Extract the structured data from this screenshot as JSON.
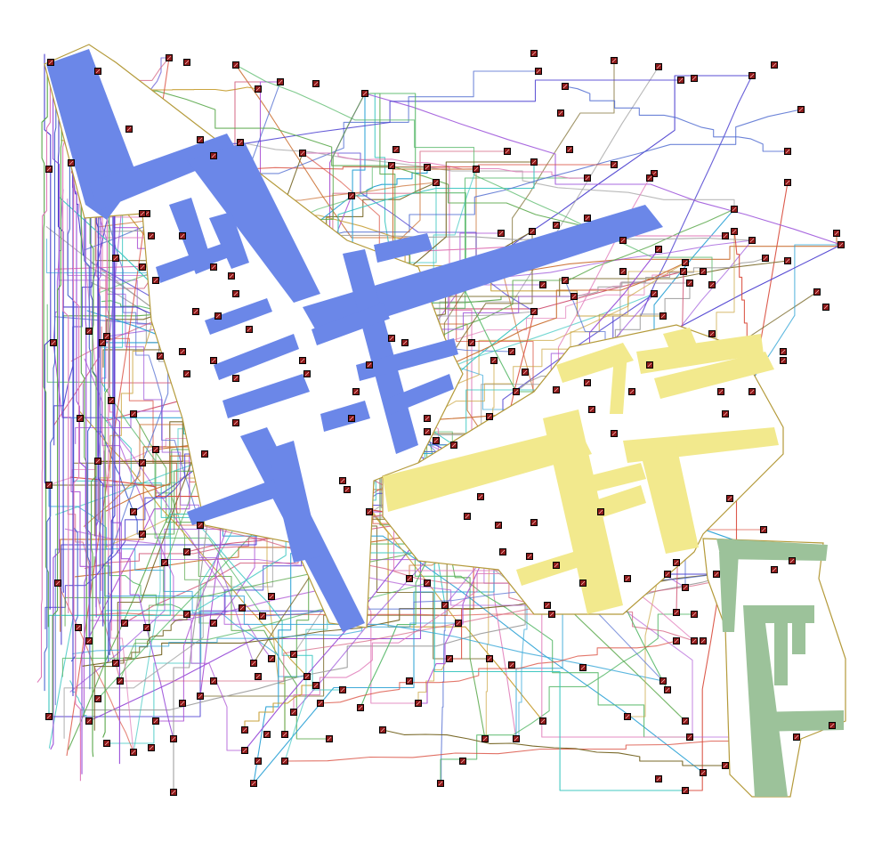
{
  "diagram": {
    "kind": "pcb-routing",
    "background_color": "#ffffff",
    "outline_color": "#b49a3a",
    "clusters": [
      {
        "id": "blue",
        "color": "#6b87e8"
      },
      {
        "id": "yellow",
        "color": "#f2e98d"
      },
      {
        "id": "green",
        "color": "#9cc29a"
      }
    ],
    "pad_color": "#8b1a1a",
    "pad_border": "#000000",
    "trace_colors": [
      "#4b3fd0",
      "#2ea3d6",
      "#d94a3a",
      "#5aa84b",
      "#b05bd6",
      "#c9a23a",
      "#e07ab8",
      "#3ac6c0",
      "#7a6a2a",
      "#9a4fd9",
      "#58b96a",
      "#d25a7a",
      "#4e6ad0",
      "#a0a0a0",
      "#c96b2b"
    ]
  }
}
